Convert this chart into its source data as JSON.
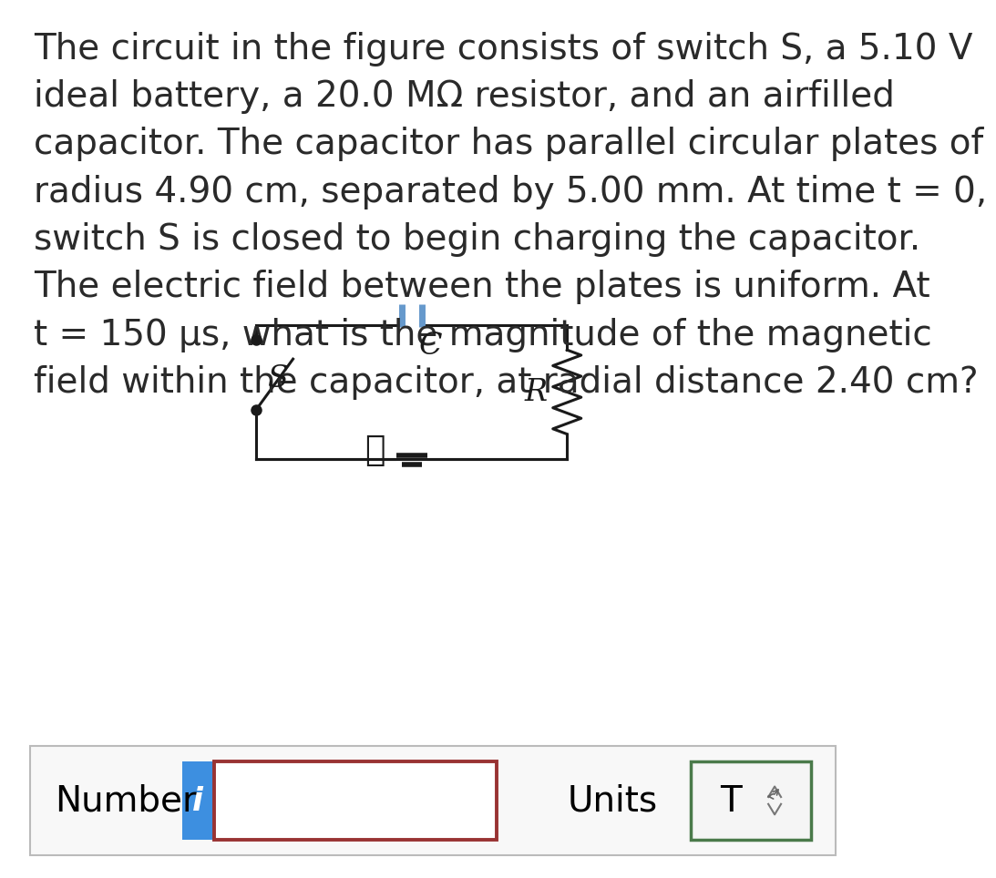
{
  "background_color": "#ffffff",
  "text_color": "#2a2a2a",
  "paragraph_lines": [
    "The circuit in the figure consists of switch S, a 5.10 V",
    "ideal battery, a 20.0 MΩ resistor, and an airfilled",
    "capacitor. The capacitor has parallel circular plates of",
    "radius 4.90 cm, separated by 5.00 mm. At time t = 0,",
    "switch S is closed to begin charging the capacitor.",
    "The electric field between the plates is uniform. At",
    "t = 150 μs, what is the magnitude of the magnetic",
    "field within the capacitor, at radial distance 2.40 cm?"
  ],
  "number_label": "Number",
  "units_label": "Units",
  "units_value": "T",
  "info_button_color": "#3d8fe0",
  "info_text_color": "#ffffff",
  "input_border_color": "#993333",
  "units_button_border_color": "#4a7a4a",
  "units_button_bg": "#f5f5f5",
  "outer_box_color": "#bbbbbb",
  "outer_box_bg": "#f8f8f8",
  "circuit_color": "#1a1a1a",
  "capacitor_color": "#6699cc",
  "font_size_para": 28,
  "font_size_labels": 28,
  "font_size_circuit": 24,
  "fig_width": 12.0,
  "fig_height": 12.27
}
